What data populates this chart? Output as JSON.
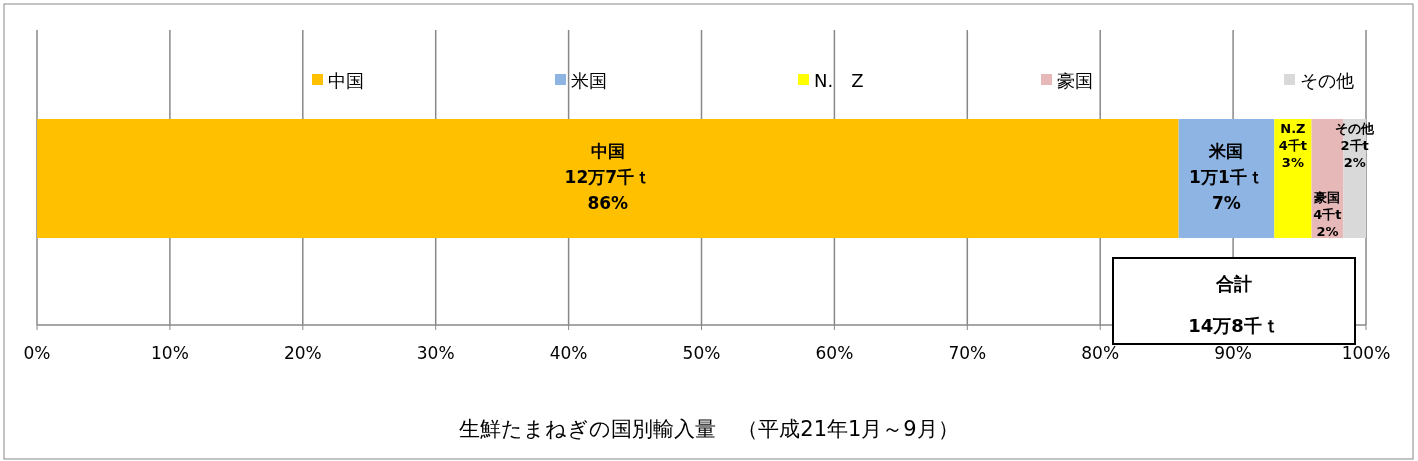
{
  "chart_data": {
    "type": "bar",
    "orientation": "horizontal",
    "stacked": true,
    "title": "生鮮たまねぎの国別輸入量　（平成21年1月～9月）",
    "categories": [
      null
    ],
    "series": [
      {
        "name": "中国",
        "color": "#ffc000",
        "values": [
          85.9
        ],
        "value_labels": [
          "中国\n12万7千ｔ\n86%"
        ]
      },
      {
        "name": "米国",
        "color": "#8eb4e3",
        "values": [
          7.2
        ],
        "value_labels": [
          "米国\n1万1千ｔ\n7%"
        ]
      },
      {
        "name": "N.　Z",
        "color": "#ffff00",
        "values": [
          2.8
        ],
        "value_labels": [
          "N.Z\n4千t\n3%"
        ]
      },
      {
        "name": "豪国",
        "color": "#e6b9b8",
        "values": [
          2.4
        ],
        "value_labels": [
          "豪国\n4千t\n2%"
        ]
      },
      {
        "name": "その他",
        "color": "#d9d9d9",
        "values": [
          1.7
        ],
        "value_labels": [
          "その他\n2千t\n2%"
        ]
      }
    ],
    "xlim": [
      0,
      100
    ],
    "xticks": [
      {
        "value": 0,
        "label": "0%"
      },
      {
        "value": 10,
        "label": "10%"
      },
      {
        "value": 20,
        "label": "20%"
      },
      {
        "value": 30,
        "label": "30%"
      },
      {
        "value": 40,
        "label": "40%"
      },
      {
        "value": 50,
        "label": "50%"
      },
      {
        "value": 60,
        "label": "60%"
      },
      {
        "value": 70,
        "label": "70%"
      },
      {
        "value": 80,
        "label": "80%"
      },
      {
        "value": 90,
        "label": "90%"
      },
      {
        "value": 100,
        "label": "100%"
      }
    ],
    "tick_labels": "x",
    "grid": "x",
    "legend": "top",
    "annotations": [
      "合計\n14万8千ｔ"
    ]
  }
}
